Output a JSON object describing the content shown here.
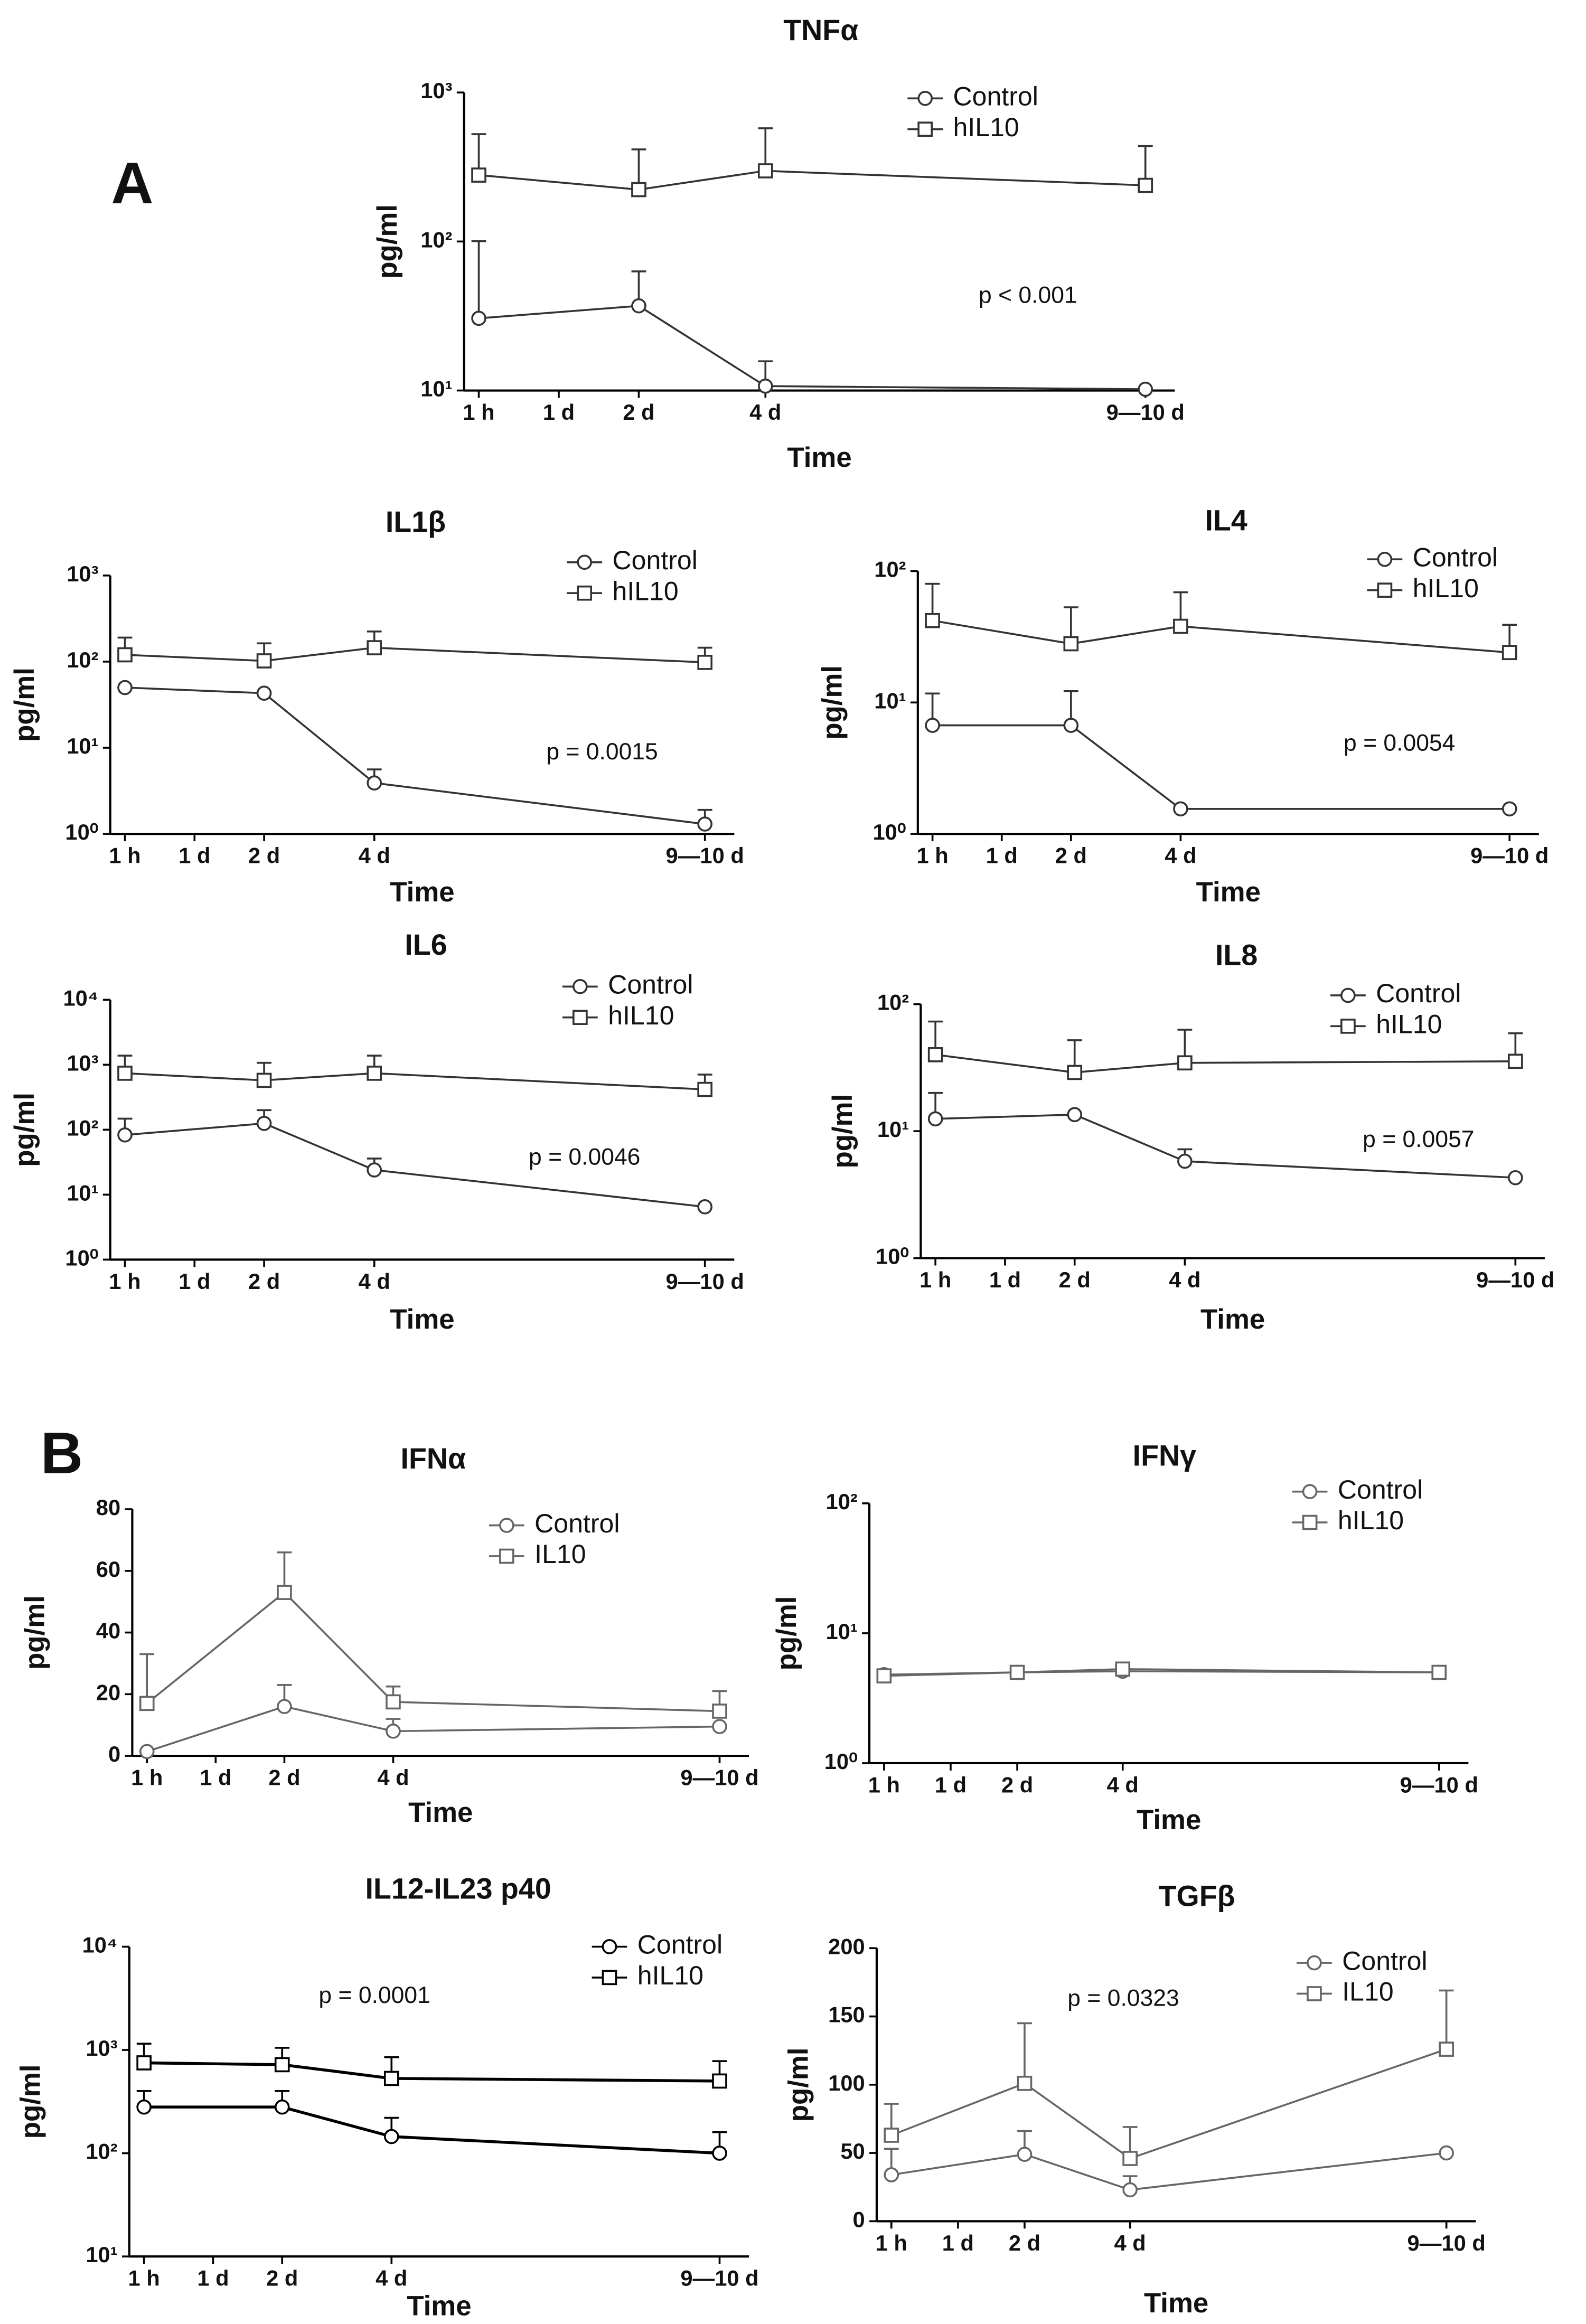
{
  "panel_labels": [
    "A",
    "B"
  ],
  "chart_data": [
    {
      "type": "line",
      "title": "TNFα",
      "x_label": "Time",
      "y_label": "pg/ml",
      "annotation": "p < 0.001",
      "log_scale": true,
      "legend": "upper right",
      "categories": [
        "1 h",
        "1 d",
        "2 d",
        "4 d",
        "9—10 d"
      ],
      "ylim": [
        10,
        1000
      ],
      "yticks": [
        {
          "value": 10,
          "label": "10¹"
        },
        {
          "value": 100,
          "label": "10²"
        },
        {
          "value": 1000,
          "label": "10³"
        }
      ],
      "series": [
        {
          "name": "Control",
          "color": "#333333",
          "marker": "circle",
          "values": [
            30.5,
            null,
            37,
            10.7,
            10.2
          ],
          "errors": [
            70,
            null,
            26,
            5,
            null
          ]
        },
        {
          "name": "hIL10",
          "color": "#333333",
          "marker": "square",
          "values": [
            279,
            null,
            223,
            298,
            238
          ],
          "errors": [
            246,
            null,
            192,
            277,
            199
          ]
        }
      ]
    },
    {
      "type": "line",
      "title": "IL1β",
      "x_label": "Time",
      "y_label": "pg/ml",
      "annotation": "p = 0.0015",
      "log_scale": true,
      "legend": "upper right",
      "categories": [
        "1 h",
        "1 d",
        "2 d",
        "4 d",
        "9—10 d"
      ],
      "ylim": [
        1,
        1000
      ],
      "yticks": [
        {
          "value": 1,
          "label": "10⁰"
        },
        {
          "value": 10,
          "label": "10¹"
        },
        {
          "value": 100,
          "label": "10²"
        },
        {
          "value": 1000,
          "label": "10³"
        }
      ],
      "series": [
        {
          "name": "Control",
          "color": "#333333",
          "marker": "circle",
          "values": [
            50,
            null,
            43,
            3.9,
            1.3
          ],
          "errors": [
            null,
            null,
            null,
            1.7,
            0.6
          ]
        },
        {
          "name": "hIL10",
          "color": "#333333",
          "marker": "square",
          "values": [
            120,
            null,
            102,
            145,
            98
          ],
          "errors": [
            70,
            null,
            61,
            79,
            47
          ]
        }
      ]
    },
    {
      "type": "line",
      "title": "IL4",
      "x_label": "Time",
      "y_label": "pg/ml",
      "annotation": "p = 0.0054",
      "log_scale": true,
      "legend": "upper right",
      "categories": [
        "1 h",
        "1 d",
        "2 d",
        "4 d",
        "9—10 d"
      ],
      "ylim": [
        1,
        100
      ],
      "yticks": [
        {
          "value": 1,
          "label": "10⁰"
        },
        {
          "value": 10,
          "label": "10¹"
        },
        {
          "value": 100,
          "label": "10²"
        }
      ],
      "series": [
        {
          "name": "Control",
          "color": "#333333",
          "marker": "circle",
          "values": [
            6.7,
            null,
            6.7,
            1.55,
            1.55
          ],
          "errors": [
            5,
            null,
            5.5,
            null,
            null
          ]
        },
        {
          "name": "hIL10",
          "color": "#333333",
          "marker": "square",
          "values": [
            42,
            null,
            28,
            38,
            24
          ],
          "errors": [
            38,
            null,
            25,
            31,
            15
          ]
        }
      ]
    },
    {
      "type": "line",
      "title": "IL6",
      "x_label": "Time",
      "y_label": "pg/ml",
      "annotation": "p = 0.0046",
      "log_scale": true,
      "legend": "upper right",
      "categories": [
        "1 h",
        "1 d",
        "2 d",
        "4 d",
        "9—10 d"
      ],
      "ylim": [
        1,
        10000
      ],
      "yticks": [
        {
          "value": 1,
          "label": "10⁰"
        },
        {
          "value": 10,
          "label": "10¹"
        },
        {
          "value": 100,
          "label": "10²"
        },
        {
          "value": 1000,
          "label": "10³"
        },
        {
          "value": 10000,
          "label": "10⁴"
        }
      ],
      "series": [
        {
          "name": "Control",
          "color": "#333333",
          "marker": "circle",
          "values": [
            83,
            null,
            125,
            24,
            6.5
          ],
          "errors": [
            65,
            null,
            75,
            12,
            null
          ]
        },
        {
          "name": "hIL10",
          "color": "#333333",
          "marker": "square",
          "values": [
            740,
            null,
            575,
            740,
            417
          ],
          "errors": [
            640,
            null,
            495,
            640,
            288
          ]
        }
      ]
    },
    {
      "type": "line",
      "title": "IL8",
      "x_label": "Time",
      "y_label": "pg/ml",
      "annotation": "p = 0.0057",
      "log_scale": true,
      "legend": "upper right",
      "categories": [
        "1 h",
        "1 d",
        "2 d",
        "4 d",
        "9—10 d"
      ],
      "ylim": [
        1,
        100
      ],
      "yticks": [
        {
          "value": 1,
          "label": "10⁰"
        },
        {
          "value": 10,
          "label": "10¹"
        },
        {
          "value": 100,
          "label": "10²"
        }
      ],
      "series": [
        {
          "name": "Control",
          "color": "#333333",
          "marker": "circle",
          "values": [
            12.5,
            null,
            13.5,
            5.8,
            4.3
          ],
          "errors": [
            7.5,
            null,
            null,
            1.4,
            null
          ]
        },
        {
          "name": "hIL10",
          "color": "#333333",
          "marker": "square",
          "values": [
            40,
            null,
            29,
            34.5,
            35.5
          ],
          "errors": [
            33,
            null,
            23,
            28.5,
            23.5
          ]
        }
      ]
    },
    {
      "type": "line",
      "title": "IFNα",
      "x_label": "Time",
      "y_label": "pg/ml",
      "log_scale": false,
      "legend": "upper right",
      "categories": [
        "1 h",
        "1 d",
        "2 d",
        "4 d",
        "9—10 d"
      ],
      "ylim": [
        0,
        80
      ],
      "yticks": [
        0,
        20,
        40,
        60,
        80
      ],
      "series": [
        {
          "name": "Control",
          "color": "#666666",
          "marker": "circle",
          "values": [
            1.4,
            null,
            16,
            8,
            9.5
          ],
          "errors": [
            null,
            null,
            7,
            4,
            null
          ]
        },
        {
          "name": "IL10",
          "color": "#666666",
          "marker": "square",
          "values": [
            17,
            null,
            53,
            17.5,
            14.5
          ],
          "errors": [
            16,
            null,
            13,
            5,
            6.5
          ]
        }
      ]
    },
    {
      "type": "line",
      "title": "IFNγ",
      "x_label": "Time",
      "y_label": "pg/ml",
      "log_scale": true,
      "legend": "upper right",
      "categories": [
        "1 h",
        "1 d",
        "2 d",
        "4 d",
        "9—10 d"
      ],
      "ylim": [
        1,
        100
      ],
      "yticks": [
        {
          "value": 1,
          "label": "10⁰"
        },
        {
          "value": 10,
          "label": "10¹"
        },
        {
          "value": 100,
          "label": "10²"
        }
      ],
      "series": [
        {
          "name": "Control",
          "color": "#666666",
          "marker": "circle",
          "values": [
            4.8,
            null,
            5.0,
            5.1,
            5.0
          ],
          "errors": [
            null,
            null,
            null,
            null,
            null
          ]
        },
        {
          "name": "hIL10",
          "color": "#666666",
          "marker": "square",
          "values": [
            4.7,
            null,
            5.0,
            5.3,
            5.0
          ],
          "errors": [
            null,
            null,
            null,
            null,
            null
          ]
        }
      ]
    },
    {
      "type": "line",
      "title": "IL12-IL23 p40",
      "x_label": "Time",
      "y_label": "pg/ml",
      "annotation": "p = 0.0001",
      "log_scale": true,
      "legend": "upper right",
      "categories": [
        "1 h",
        "1 d",
        "2 d",
        "4 d",
        "9—10 d"
      ],
      "ylim": [
        10,
        10000
      ],
      "yticks": [
        {
          "value": 10,
          "label": "10¹"
        },
        {
          "value": 100,
          "label": "10²"
        },
        {
          "value": 1000,
          "label": "10³"
        },
        {
          "value": 10000,
          "label": "10⁴"
        }
      ],
      "series": [
        {
          "name": "Control",
          "color": "#000000",
          "marker": "circle",
          "values": [
            280,
            null,
            280,
            145,
            100
          ],
          "errors": [
            120,
            null,
            120,
            75,
            60
          ]
        },
        {
          "name": "hIL10",
          "color": "#000000",
          "marker": "square",
          "values": [
            750,
            null,
            720,
            530,
            500
          ],
          "errors": [
            400,
            null,
            330,
            320,
            280
          ]
        }
      ]
    },
    {
      "type": "line",
      "title": "TGFβ",
      "x_label": "Time",
      "y_label": "pg/ml",
      "annotation": "p = 0.0323",
      "log_scale": false,
      "legend": "upper right",
      "categories": [
        "1 h",
        "1 d",
        "2 d",
        "4 d",
        "9—10 d"
      ],
      "ylim": [
        0,
        200
      ],
      "yticks": [
        0,
        50,
        100,
        150,
        200
      ],
      "series": [
        {
          "name": "Control",
          "color": "#666666",
          "marker": "circle",
          "values": [
            34,
            null,
            49,
            23,
            50
          ],
          "errors": [
            19,
            null,
            17,
            10,
            null
          ]
        },
        {
          "name": "IL10",
          "color": "#666666",
          "marker": "square",
          "values": [
            63,
            null,
            101,
            46,
            126
          ],
          "errors": [
            23,
            null,
            44,
            23,
            43
          ]
        }
      ]
    }
  ]
}
